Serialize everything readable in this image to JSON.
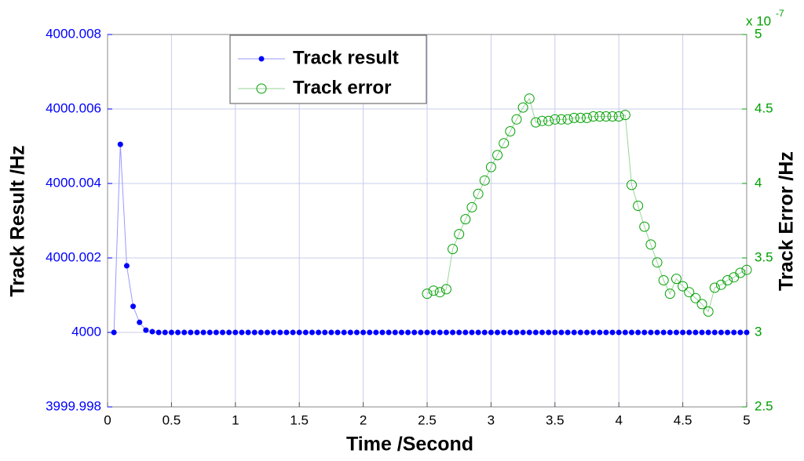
{
  "chart_data": {
    "type": "line",
    "xlabel": "Time /Second",
    "ylabel": "Track Result /Hz",
    "y2label": "Track Error /Hz",
    "y2_multiplier": "x 10",
    "y2_exponent": "-7",
    "xlim": [
      0,
      5
    ],
    "xticks": [
      0,
      0.5,
      1,
      1.5,
      2,
      2.5,
      3,
      3.5,
      4,
      4.5,
      5
    ],
    "ylim": [
      3999.998,
      4000.008
    ],
    "yticks": [
      3999.998,
      4000,
      4000.002,
      4000.004,
      4000.006,
      4000.008
    ],
    "y2lim": [
      2.5,
      5
    ],
    "y2ticks": [
      2.5,
      3,
      3.5,
      4,
      4.5,
      5
    ],
    "grid": true,
    "legend": "top-left",
    "series": [
      {
        "name": "Track result",
        "color": "#0000ff",
        "line_color": "#9999ff",
        "marker": "filled",
        "x": [
          0.05,
          0.1,
          0.15,
          0.2,
          0.25,
          0.3,
          0.35,
          0.4,
          0.45,
          0.5,
          0.55,
          0.6,
          0.65,
          0.7,
          0.75,
          0.8,
          0.85,
          0.9,
          0.95,
          1,
          1.05,
          1.1,
          1.15,
          1.2,
          1.25,
          1.3,
          1.35,
          1.4,
          1.45,
          1.5,
          1.55,
          1.6,
          1.65,
          1.7,
          1.75,
          1.8,
          1.85,
          1.9,
          1.95,
          2,
          2.05,
          2.1,
          2.15,
          2.2,
          2.25,
          2.3,
          2.35,
          2.4,
          2.45,
          2.5,
          2.55,
          2.6,
          2.65,
          2.7,
          2.75,
          2.8,
          2.85,
          2.9,
          2.95,
          3,
          3.05,
          3.1,
          3.15,
          3.2,
          3.25,
          3.3,
          3.35,
          3.4,
          3.45,
          3.5,
          3.55,
          3.6,
          3.65,
          3.7,
          3.75,
          3.8,
          3.85,
          3.9,
          3.95,
          4,
          4.05,
          4.1,
          4.15,
          4.2,
          4.25,
          4.3,
          4.35,
          4.4,
          4.45,
          4.5,
          4.55,
          4.6,
          4.65,
          4.7,
          4.75,
          4.8,
          4.85,
          4.9,
          4.95,
          5
        ],
        "values": [
          4000,
          4000.00505,
          4000.00179,
          4000.0007,
          4000.00027,
          4000.00006,
          4000.00002,
          4000,
          4000,
          4000,
          4000,
          4000,
          4000,
          4000,
          4000,
          4000,
          4000,
          4000,
          4000,
          4000,
          4000,
          4000,
          4000,
          4000,
          4000,
          4000,
          4000,
          4000,
          4000,
          4000,
          4000,
          4000,
          4000,
          4000,
          4000,
          4000,
          4000,
          4000,
          4000,
          4000,
          4000,
          4000,
          4000,
          4000,
          4000,
          4000,
          4000,
          4000,
          4000,
          4000,
          4000,
          4000,
          4000,
          4000,
          4000,
          4000,
          4000,
          4000,
          4000,
          4000,
          4000,
          4000,
          4000,
          4000,
          4000,
          4000,
          4000,
          4000,
          4000,
          4000,
          4000,
          4000,
          4000,
          4000,
          4000,
          4000,
          4000,
          4000,
          4000,
          4000,
          4000,
          4000,
          4000,
          4000,
          4000,
          4000,
          4000,
          4000,
          4000,
          4000,
          4000,
          4000,
          4000,
          4000,
          4000,
          4000,
          4000,
          4000,
          4000,
          4000
        ]
      },
      {
        "name": "Track error",
        "color": "#00a000",
        "line_color": "#99d699",
        "marker": "open",
        "axis": "y2",
        "x": [
          2.5,
          2.55,
          2.6,
          2.65,
          2.7,
          2.75,
          2.8,
          2.85,
          2.9,
          2.95,
          3,
          3.05,
          3.1,
          3.15,
          3.2,
          3.25,
          3.3,
          3.35,
          3.4,
          3.45,
          3.5,
          3.55,
          3.6,
          3.65,
          3.7,
          3.75,
          3.8,
          3.85,
          3.9,
          3.95,
          4,
          4.05,
          4.1,
          4.15,
          4.2,
          4.25,
          4.3,
          4.35,
          4.4,
          4.45,
          4.5,
          4.55,
          4.6,
          4.65,
          4.7,
          4.75,
          4.8,
          4.85,
          4.9,
          4.95,
          5
        ],
        "values": [
          3.26,
          3.28,
          3.27,
          3.29,
          3.56,
          3.66,
          3.76,
          3.84,
          3.93,
          4.02,
          4.11,
          4.19,
          4.27,
          4.35,
          4.43,
          4.51,
          4.57,
          4.41,
          4.42,
          4.42,
          4.43,
          4.43,
          4.43,
          4.44,
          4.44,
          4.44,
          4.45,
          4.45,
          4.45,
          4.45,
          4.45,
          4.46,
          3.99,
          3.85,
          3.71,
          3.59,
          3.47,
          3.35,
          3.26,
          3.36,
          3.31,
          3.27,
          3.23,
          3.19,
          3.14,
          3.3,
          3.32,
          3.35,
          3.37,
          3.4,
          3.42
        ]
      }
    ]
  }
}
